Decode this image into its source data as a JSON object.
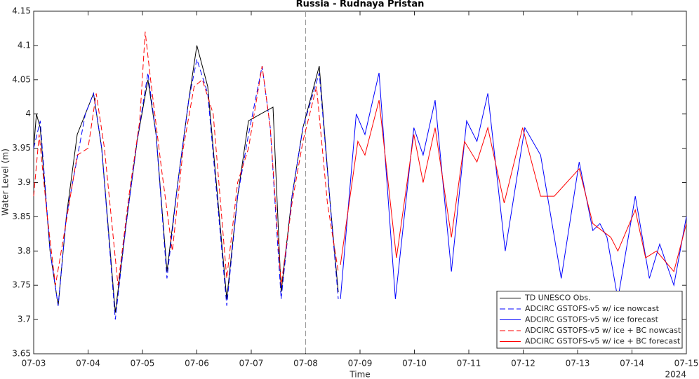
{
  "chart_data": {
    "type": "line",
    "title": "Russia - Rudnaya Pristan",
    "xlabel": "Time",
    "ylabel": "Water Level (m)",
    "x_annotation": "2024",
    "xlim": [
      0,
      12
    ],
    "ylim": [
      3.65,
      4.15
    ],
    "xticks": [
      {
        "value": 0,
        "label": "07-03"
      },
      {
        "value": 1,
        "label": "07-04"
      },
      {
        "value": 2,
        "label": "07-05"
      },
      {
        "value": 3,
        "label": "07-06"
      },
      {
        "value": 4,
        "label": "07-07"
      },
      {
        "value": 5,
        "label": "07-08"
      },
      {
        "value": 6,
        "label": "07-09"
      },
      {
        "value": 7,
        "label": "07-10"
      },
      {
        "value": 8,
        "label": "07-11"
      },
      {
        "value": 9,
        "label": "07-12"
      },
      {
        "value": 10,
        "label": "07-13"
      },
      {
        "value": 11,
        "label": "07-14"
      },
      {
        "value": 12,
        "label": "07-15"
      }
    ],
    "yticks": [
      3.65,
      3.7,
      3.75,
      3.8,
      3.85,
      3.9,
      3.95,
      4,
      4.05,
      4.1,
      4.15
    ],
    "vline": 5,
    "legend": "lower right",
    "grid": false,
    "series": [
      {
        "name": "TD UNESCO Obs.",
        "color": "#000000",
        "dashed": false,
        "x": [
          0,
          0.05,
          0.12,
          0.2,
          0.3,
          0.45,
          0.6,
          0.8,
          0.95,
          1.1,
          1.25,
          1.5,
          1.7,
          1.9,
          2.1,
          2.25,
          2.45,
          2.65,
          2.85,
          3.0,
          3.2,
          3.3,
          3.55,
          3.75,
          3.95,
          4.4,
          4.55,
          4.75,
          4.95,
          5.25,
          5.45,
          5.6
        ],
        "values": [
          3.95,
          4.0,
          3.98,
          3.9,
          3.8,
          3.72,
          3.85,
          3.97,
          4.0,
          4.03,
          3.95,
          3.71,
          3.84,
          3.96,
          4.05,
          3.97,
          3.77,
          3.9,
          4.02,
          4.1,
          4.04,
          3.95,
          3.73,
          3.88,
          3.99,
          4.01,
          3.74,
          3.88,
          3.98,
          4.07,
          3.87,
          3.74
        ]
      },
      {
        "name": "ADCIRC GSTOFS-v5 w/ ice nowcast",
        "color": "#0000ff",
        "dashed": true,
        "x": [
          0,
          0.12,
          0.3,
          0.45,
          0.6,
          0.95,
          1.1,
          1.25,
          1.5,
          1.7,
          1.9,
          2.1,
          2.25,
          2.45,
          2.65,
          2.85,
          3.0,
          3.2,
          3.55,
          3.75,
          3.95,
          4.2,
          4.35,
          4.55,
          4.75,
          4.95,
          5.25,
          5.45,
          5.6
        ],
        "values": [
          3.95,
          3.99,
          3.8,
          3.72,
          3.85,
          4.0,
          4.03,
          3.95,
          3.7,
          3.84,
          3.96,
          4.06,
          3.97,
          3.76,
          3.9,
          4.02,
          4.08,
          4.03,
          3.72,
          3.88,
          3.97,
          4.07,
          3.98,
          3.73,
          3.88,
          3.98,
          4.06,
          3.87,
          3.73
        ]
      },
      {
        "name": "ADCIRC GSTOFS-v5 w/ ice forecast",
        "color": "#0000ff",
        "dashed": false,
        "x": [
          5.64,
          5.93,
          6.09,
          6.35,
          6.65,
          6.99,
          7.16,
          7.38,
          7.68,
          7.96,
          8.15,
          8.35,
          8.67,
          9.03,
          9.32,
          9.7,
          10.03,
          10.28,
          10.41,
          10.54,
          10.74,
          11.06,
          11.32,
          11.51,
          11.77,
          12
        ],
        "values": [
          3.73,
          4.0,
          3.97,
          4.06,
          3.73,
          3.98,
          3.94,
          4.02,
          3.77,
          3.99,
          3.96,
          4.03,
          3.8,
          3.98,
          3.94,
          3.76,
          3.93,
          3.83,
          3.84,
          3.82,
          3.73,
          3.88,
          3.76,
          3.81,
          3.75,
          3.85
        ]
      },
      {
        "name": "ADCIRC GSTOFS-v5 w/ ice + BC nowcast",
        "color": "#ff0000",
        "dashed": true,
        "x": [
          0,
          0.1,
          0.25,
          0.4,
          0.55,
          0.8,
          1.0,
          1.15,
          1.3,
          1.55,
          1.75,
          1.95,
          2.05,
          2.15,
          2.35,
          2.55,
          2.75,
          2.95,
          3.1,
          3.3,
          3.55,
          3.75,
          3.95,
          4.2,
          4.35,
          4.55,
          4.75,
          4.95,
          5.2,
          5.4,
          5.6
        ],
        "values": [
          3.88,
          3.97,
          3.85,
          3.75,
          3.82,
          3.94,
          3.95,
          4.03,
          3.95,
          3.75,
          3.88,
          3.99,
          4.12,
          4.05,
          3.92,
          3.8,
          3.95,
          4.04,
          4.05,
          4.0,
          3.76,
          3.9,
          3.95,
          4.07,
          3.98,
          3.75,
          3.87,
          3.96,
          4.04,
          3.87,
          3.77
        ]
      },
      {
        "name": "ADCIRC GSTOFS-v5 w/ ice + BC forecast",
        "color": "#ff0000",
        "dashed": false,
        "x": [
          5.64,
          5.96,
          6.09,
          6.35,
          6.67,
          6.99,
          7.16,
          7.38,
          7.68,
          7.92,
          8.15,
          8.35,
          8.65,
          8.99,
          9.32,
          9.57,
          10.03,
          10.28,
          10.61,
          10.74,
          11.06,
          11.25,
          11.45,
          11.77,
          12
        ],
        "values": [
          3.78,
          3.96,
          3.94,
          4.02,
          3.79,
          3.97,
          3.9,
          3.98,
          3.82,
          3.96,
          3.93,
          3.98,
          3.87,
          3.98,
          3.88,
          3.88,
          3.92,
          3.84,
          3.82,
          3.8,
          3.86,
          3.79,
          3.8,
          3.77,
          3.84
        ]
      }
    ]
  }
}
